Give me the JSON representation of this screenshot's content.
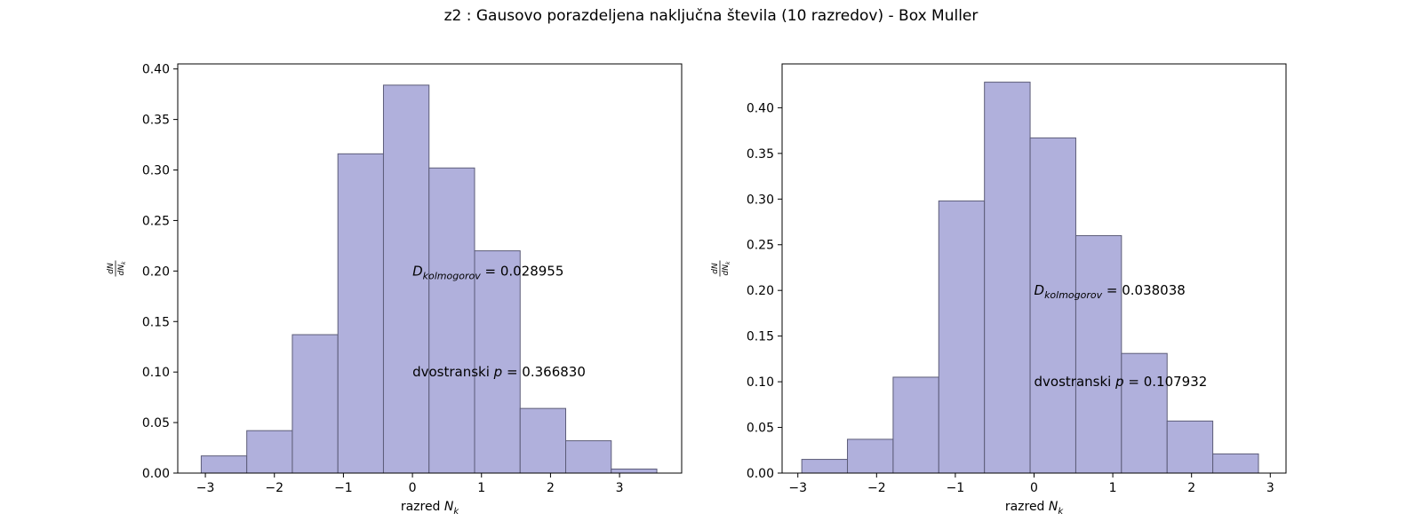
{
  "suptitle": "z2 : Gausovo porazdeljena naključna števila (10 razredov) - Box Muller",
  "colors": {
    "bar_fill": "#b0b0dc",
    "bar_edge": "#5c5c78",
    "axes": "#000000"
  },
  "chart_data": [
    {
      "type": "bar",
      "title": "",
      "xlabel": "razred N_k",
      "xlabel_main": "razred ",
      "xlabel_sym": "N",
      "xlabel_sub": "k",
      "ylabel": "dN/dN_k",
      "xlim": [
        -3.4,
        3.9
      ],
      "ylim": [
        0,
        0.405
      ],
      "xticks": [
        -3,
        -2,
        -1,
        0,
        1,
        2,
        3
      ],
      "xtick_labels": [
        "−3",
        "−2",
        "−1",
        "0",
        "1",
        "2",
        "3"
      ],
      "yticks": [
        0,
        0.05,
        0.1,
        0.15,
        0.2,
        0.25,
        0.3,
        0.35,
        0.4
      ],
      "ytick_labels": [
        "0.00",
        "0.05",
        "0.10",
        "0.15",
        "0.20",
        "0.25",
        "0.30",
        "0.35",
        "0.40"
      ],
      "bin_edges": [
        -3.06,
        -2.4,
        -1.74,
        -1.08,
        -0.42,
        0.24,
        0.9,
        1.56,
        2.22,
        2.88,
        3.54
      ],
      "values": [
        0.017,
        0.042,
        0.137,
        0.316,
        0.384,
        0.302,
        0.22,
        0.064,
        0.032,
        0.004
      ],
      "grid": false,
      "annotations": [
        {
          "sym": "D",
          "sub": "kolmogorov",
          "text": " = 0.028955",
          "x": 0.0,
          "y": 0.2
        },
        {
          "sym": "",
          "sub": "",
          "prefix": "dvostranski ",
          "sym_p": "p",
          "text": " = 0.366830",
          "x": 0.0,
          "y": 0.1
        }
      ]
    },
    {
      "type": "bar",
      "title": "",
      "xlabel": "razred N_k",
      "xlabel_main": "razred ",
      "xlabel_sym": "N",
      "xlabel_sub": "k",
      "ylabel": "dN/dN_k",
      "xlim": [
        -3.2,
        3.2
      ],
      "ylim": [
        0,
        0.448
      ],
      "xticks": [
        -3,
        -2,
        -1,
        0,
        1,
        2,
        3
      ],
      "xtick_labels": [
        "−3",
        "−2",
        "−1",
        "0",
        "1",
        "2",
        "3"
      ],
      "yticks": [
        0,
        0.05,
        0.1,
        0.15,
        0.2,
        0.25,
        0.3,
        0.35,
        0.4
      ],
      "ytick_labels": [
        "0.00",
        "0.05",
        "0.10",
        "0.15",
        "0.20",
        "0.25",
        "0.30",
        "0.35",
        "0.40"
      ],
      "bin_edges": [
        -2.95,
        -2.37,
        -1.79,
        -1.21,
        -0.63,
        -0.05,
        0.53,
        1.11,
        1.69,
        2.27,
        2.85
      ],
      "values": [
        0.015,
        0.037,
        0.105,
        0.298,
        0.428,
        0.367,
        0.26,
        0.131,
        0.057,
        0.021
      ],
      "grid": false,
      "annotations": [
        {
          "sym": "D",
          "sub": "kolmogorov",
          "text": " = 0.038038",
          "x": 0.0,
          "y": 0.2
        },
        {
          "sym": "",
          "sub": "",
          "prefix": "dvostranski ",
          "sym_p": "p",
          "text": " = 0.107932",
          "x": 0.0,
          "y": 0.1
        }
      ]
    }
  ]
}
